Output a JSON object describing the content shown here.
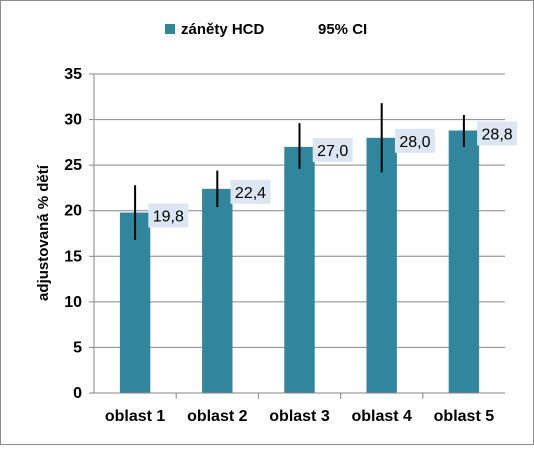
{
  "chart_data": {
    "type": "bar",
    "categories": [
      "oblast 1",
      "oblast 2",
      "oblast 3",
      "oblast 4",
      "oblast 5"
    ],
    "series": [
      {
        "name": "záněty HCD",
        "values": [
          19.8,
          22.4,
          27.0,
          28.0,
          28.8
        ],
        "data_labels": [
          "19,8",
          "22,4",
          "27,0",
          "28,0",
          "28,8"
        ],
        "ci_low": [
          16.8,
          20.4,
          24.6,
          24.2,
          27.0
        ],
        "ci_high": [
          22.8,
          24.4,
          29.6,
          31.8,
          30.5
        ]
      }
    ],
    "ci_legend_label": "95% CI",
    "title": "",
    "xlabel": "",
    "ylabel": "adjustovaná  % dětí",
    "ylim": [
      0,
      35
    ],
    "yticks": [
      0,
      5,
      10,
      15,
      20,
      25,
      30,
      35
    ],
    "grid": true,
    "legend": "top",
    "colors": {
      "bar": "#31859C",
      "error_bar": "#000000",
      "grid": "#868686",
      "label_bg": "#DCE6F2"
    }
  }
}
